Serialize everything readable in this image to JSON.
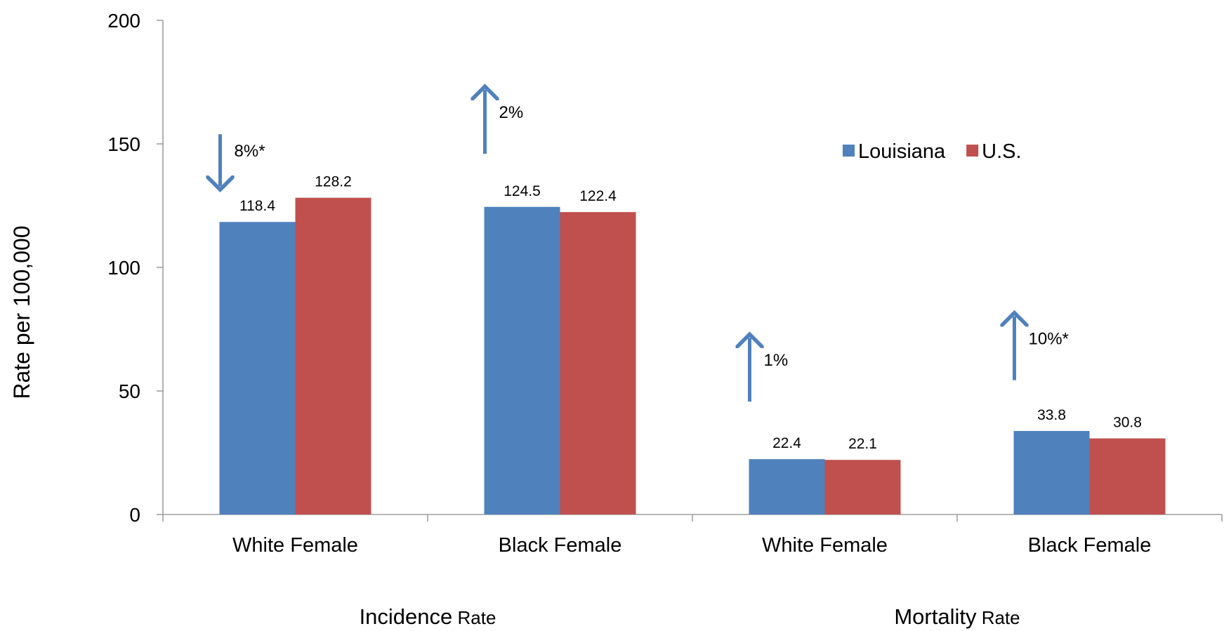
{
  "chart_data": {
    "type": "bar",
    "ylabel": "Rate per 100,000",
    "ylim": [
      0,
      200
    ],
    "yticks": [
      0,
      50,
      100,
      150,
      200
    ],
    "grid": false,
    "legend_position": "top-right",
    "categories": [
      "White Female",
      "Black Female",
      "White Female",
      "Black Female"
    ],
    "groups": [
      {
        "main": "Incidence",
        "suffix": " Rate",
        "categories": [
          0,
          1
        ]
      },
      {
        "main": "Mortality",
        "suffix": " Rate",
        "categories": [
          2,
          3
        ]
      }
    ],
    "series": [
      {
        "name": "Louisiana",
        "color": "#4F81BD",
        "values": [
          118.4,
          124.5,
          22.4,
          33.8
        ]
      },
      {
        "name": "U.S.",
        "color": "#C0504D",
        "values": [
          128.2,
          122.4,
          22.1,
          30.8
        ]
      }
    ],
    "data_labels": [
      [
        "118.4",
        "124.5",
        "22.4",
        "33.8"
      ],
      [
        "128.2",
        "122.4",
        "22.1",
        "30.8"
      ]
    ],
    "annotations": [
      {
        "category": 0,
        "direction": "down",
        "text": "8%*"
      },
      {
        "category": 1,
        "direction": "up",
        "text": "2%"
      },
      {
        "category": 2,
        "direction": "up",
        "text": "1%"
      },
      {
        "category": 3,
        "direction": "up",
        "text": "10%*"
      }
    ],
    "arrow_color": "#4F81BD"
  }
}
